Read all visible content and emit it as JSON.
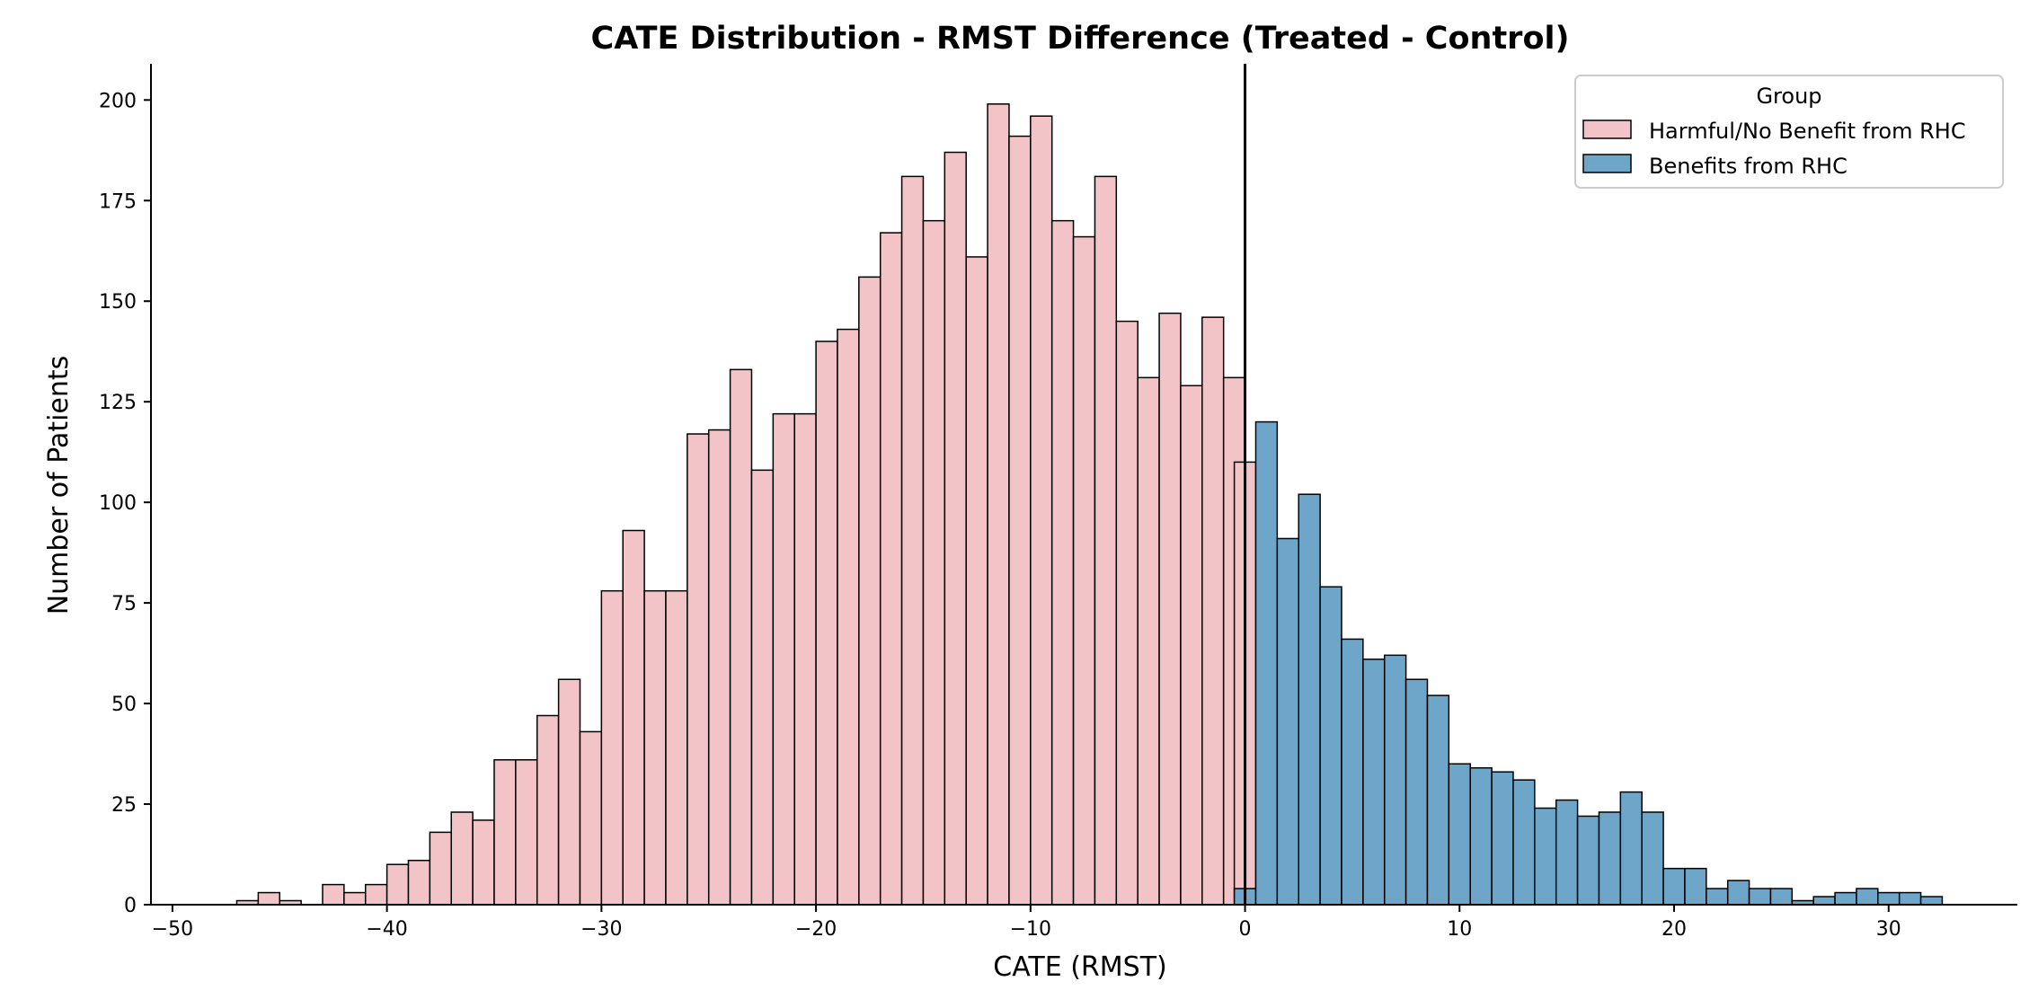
{
  "chart_data": {
    "type": "bar",
    "title": "CATE Distribution - RMST Difference (Treated - Control)",
    "xlabel": "CATE (RMST)",
    "ylabel": "Number of Patients",
    "xlim": [
      -51,
      36
    ],
    "ylim": [
      0,
      209
    ],
    "x_ticks": [
      -50,
      -40,
      -30,
      -20,
      -10,
      0,
      10,
      20,
      30
    ],
    "x_tick_labels": [
      "−50",
      "−40",
      "−30",
      "−20",
      "−10",
      "0",
      "10",
      "20",
      "30"
    ],
    "y_ticks": [
      0,
      25,
      50,
      75,
      100,
      125,
      150,
      175,
      200
    ],
    "y_tick_labels": [
      "0",
      "25",
      "50",
      "75",
      "100",
      "125",
      "150",
      "175",
      "200"
    ],
    "bin_width": 1.0,
    "vline_x": 0,
    "grid": false,
    "legend": {
      "title": "Group",
      "position": "top-right",
      "entries": [
        "Harmful/No Benefit from RHC",
        "Benefits from RHC"
      ]
    },
    "series": [
      {
        "name": "Harmful/No Benefit from RHC",
        "color": "#f2c4c7",
        "bin_starts": [
          -47.0,
          -46.0,
          -45.0,
          -44.0,
          -43.0,
          -42.0,
          -41.0,
          -40.0,
          -39.0,
          -38.0,
          -37.0,
          -36.0,
          -35.0,
          -34.0,
          -33.0,
          -32.0,
          -31.0,
          -30.0,
          -29.0,
          -28.0,
          -27.0,
          -26.0,
          -25.0,
          -24.0,
          -23.0,
          -22.0,
          -21.0,
          -20.0,
          -19.0,
          -18.0,
          -17.0,
          -16.0,
          -15.0,
          -14.0,
          -13.0,
          -12.0,
          -11.0,
          -10.0,
          -9.0,
          -8.0,
          -7.0,
          -6.0,
          -5.0,
          -4.0,
          -3.0,
          -2.0,
          -1.0,
          -0.5
        ],
        "values": [
          1,
          3,
          1,
          0,
          5,
          3,
          5,
          10,
          11,
          18,
          23,
          21,
          36,
          36,
          47,
          56,
          43,
          78,
          93,
          78,
          78,
          117,
          118,
          133,
          108,
          122,
          122,
          140,
          143,
          156,
          167,
          181,
          170,
          187,
          161,
          199,
          191,
          196,
          170,
          166,
          181,
          145,
          131,
          147,
          129,
          146,
          131,
          110
        ]
      },
      {
        "name": "Benefits from RHC",
        "color": "#6ea6c9",
        "bin_starts": [
          -0.5,
          0.5,
          1.5,
          2.5,
          3.5,
          4.5,
          5.5,
          6.5,
          7.5,
          8.5,
          9.5,
          10.5,
          11.5,
          12.5,
          13.5,
          14.5,
          15.5,
          16.5,
          17.5,
          18.5,
          19.5,
          20.5,
          21.5,
          22.5,
          23.5,
          24.5,
          25.5,
          26.5,
          27.5,
          28.5,
          29.5,
          30.5,
          31.5
        ],
        "values": [
          4,
          120,
          91,
          102,
          79,
          66,
          61,
          62,
          56,
          52,
          35,
          34,
          33,
          31,
          24,
          26,
          22,
          23,
          28,
          23,
          9,
          9,
          4,
          6,
          4,
          4,
          1,
          2,
          3,
          4,
          3,
          3,
          2
        ]
      }
    ]
  }
}
